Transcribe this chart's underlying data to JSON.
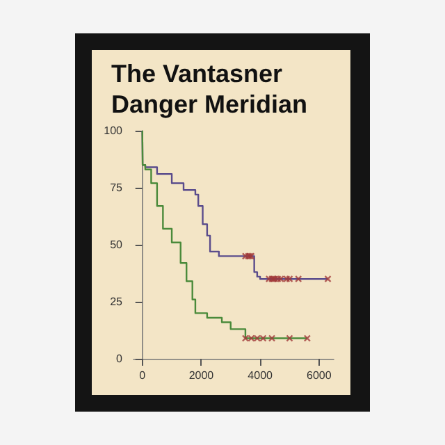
{
  "chart_data": {
    "type": "step",
    "title": "The Vantasner\nDanger Meridian",
    "xlim": [
      -300,
      6500
    ],
    "xticks": [
      0,
      2000,
      4000,
      6000
    ],
    "ylim": [
      0,
      100
    ],
    "yticks": [
      0,
      25,
      50,
      75,
      100
    ],
    "grid": false,
    "marker": "none",
    "line_style": "solid",
    "series": [
      {
        "color": "#5a4c8c",
        "x": [
          0,
          10,
          100,
          500,
          1000,
          1400,
          1800,
          1900,
          2050,
          2200,
          2300,
          2600,
          3700,
          3800,
          3900,
          4000,
          6300
        ],
        "values": [
          100,
          85,
          84,
          81,
          77,
          74,
          72,
          67,
          59,
          54,
          47,
          45,
          45,
          38,
          36,
          35,
          35
        ]
      },
      {
        "color": "#4a8a3a",
        "x": [
          0,
          10,
          100,
          300,
          500,
          700,
          1000,
          1300,
          1500,
          1700,
          1800,
          2200,
          2700,
          3000,
          3500,
          5600
        ],
        "values": [
          100,
          85,
          83,
          77,
          67,
          57,
          51,
          42,
          34,
          26,
          20,
          18,
          16,
          13,
          9,
          9
        ]
      },
      {
        "type": "scatter",
        "marker": "cross",
        "color": "#a03838",
        "x": [
          3500,
          3600,
          3650,
          3700,
          4300,
          4400,
          4450,
          4500,
          4600,
          4700,
          4900,
          5000,
          5300,
          6300
        ],
        "values": [
          45,
          45,
          45,
          45,
          35,
          35,
          35,
          35,
          35,
          35,
          35,
          35,
          35,
          35
        ]
      },
      {
        "type": "scatter",
        "marker": "cross",
        "color": "#a03838",
        "x": [
          3500,
          3700,
          3900,
          4100,
          4400,
          5000,
          5600
        ],
        "values": [
          9,
          9,
          9,
          9,
          9,
          9,
          9
        ]
      }
    ]
  }
}
